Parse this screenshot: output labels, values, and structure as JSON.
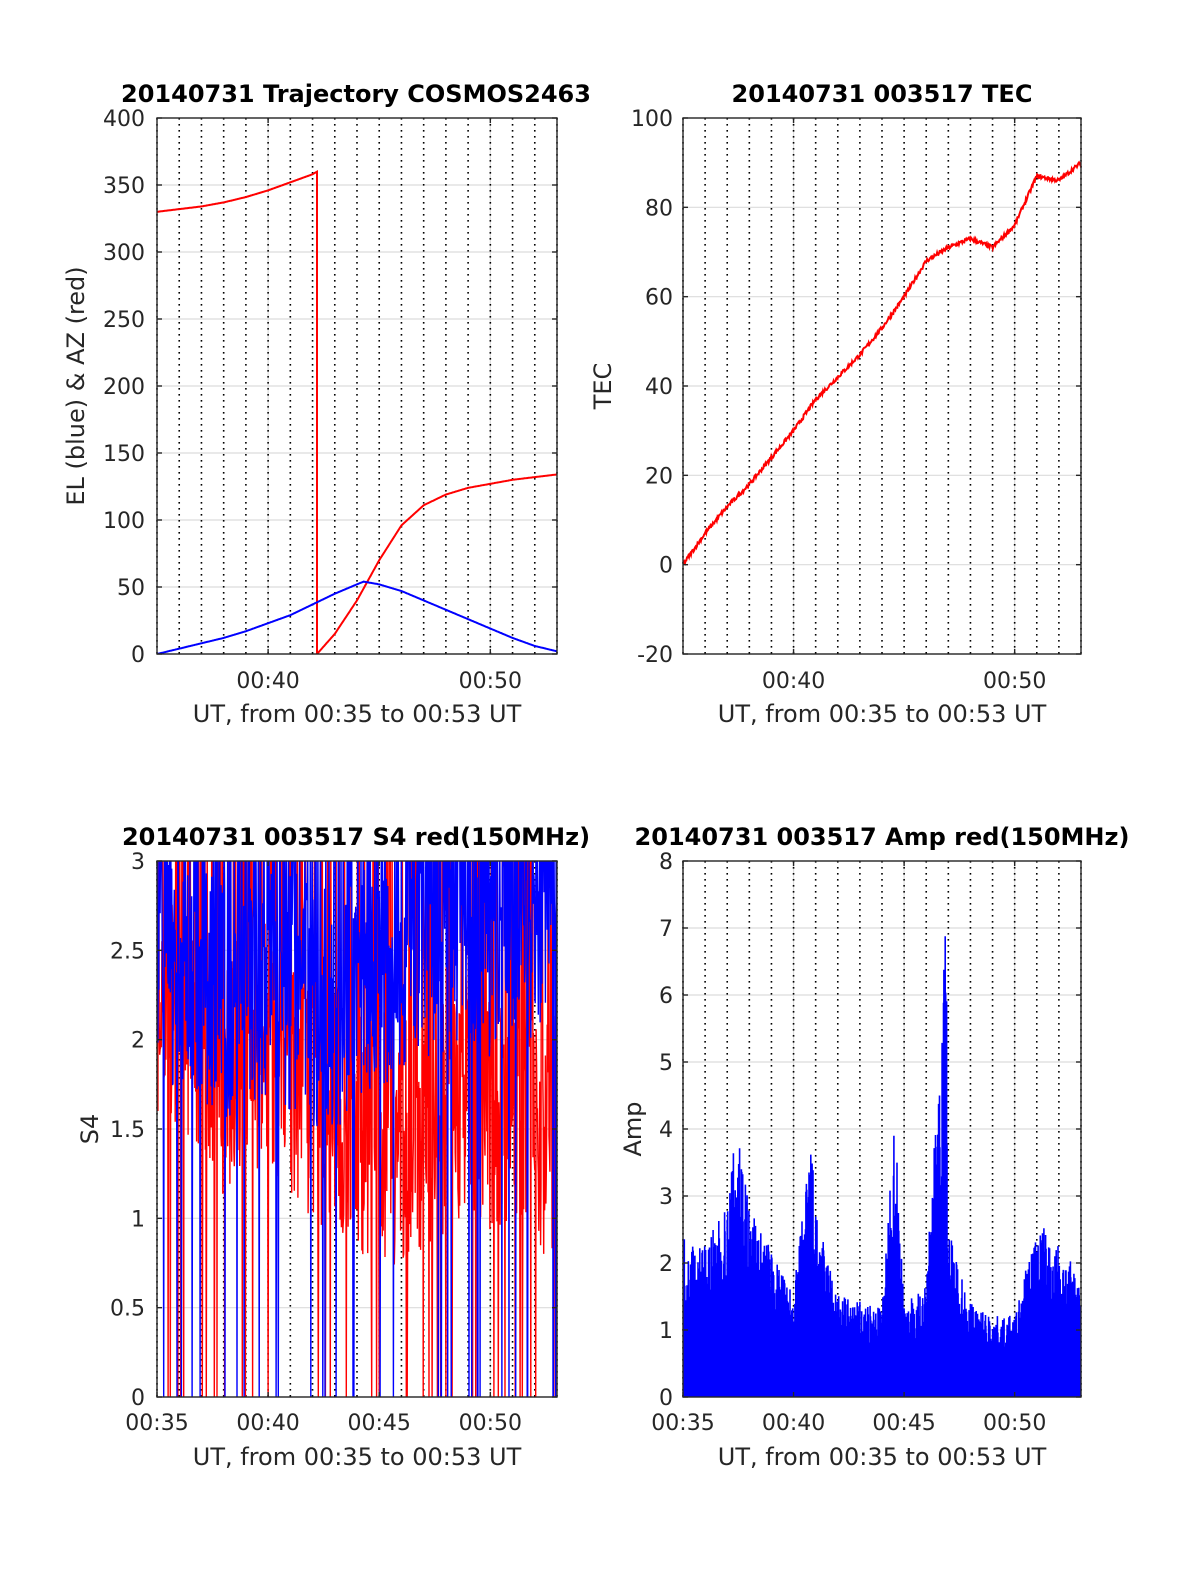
{
  "chart_data": [
    {
      "type": "line",
      "title": "20140731 Trajectory COSMOS2463",
      "xlabel": "UT, from 00:35 to 00:53 UT",
      "ylabel": "EL (blue) & AZ (red)",
      "xlim": [
        "00:35",
        "00:53"
      ],
      "ylim": [
        0,
        400
      ],
      "x_ticks": [
        "00:40",
        "00:50"
      ],
      "y_ticks": [
        "0",
        "50",
        "100",
        "150",
        "200",
        "250",
        "300",
        "350",
        "400"
      ],
      "grid": true,
      "series": [
        {
          "color": "#ff0000",
          "x": [
            "00:35",
            "00:36",
            "00:37",
            "00:38",
            "00:39",
            "00:40",
            "00:41",
            "00:42",
            "00:42.2",
            "00:42.2",
            "00:43",
            "00:44",
            "00:45",
            "00:46",
            "00:47",
            "00:48",
            "00:49",
            "00:50",
            "00:51",
            "00:52",
            "00:53"
          ],
          "values": [
            330,
            332,
            334,
            337,
            341,
            346,
            352,
            358,
            360,
            0,
            15,
            40,
            70,
            96,
            111,
            119,
            124,
            127,
            130,
            132,
            134
          ]
        },
        {
          "color": "#0000ff",
          "x": [
            "00:35",
            "00:36",
            "00:37",
            "00:38",
            "00:39",
            "00:40",
            "00:41",
            "00:42",
            "00:43",
            "00:44",
            "00:44.3",
            "00:45",
            "00:46",
            "00:47",
            "00:48",
            "00:49",
            "00:50",
            "00:51",
            "00:52",
            "00:53"
          ],
          "values": [
            0,
            4,
            8,
            12,
            17,
            23,
            29,
            37,
            45,
            52,
            54,
            52,
            47,
            40,
            33,
            26,
            19,
            12,
            6,
            2
          ]
        }
      ]
    },
    {
      "type": "line",
      "title": "20140731 003517 TEC",
      "xlabel": "UT, from 00:35 to 00:53 UT",
      "ylabel": "TEC",
      "xlim": [
        "00:35",
        "00:53"
      ],
      "ylim": [
        -20,
        100
      ],
      "x_ticks": [
        "00:40",
        "00:50"
      ],
      "y_ticks": [
        "-20",
        "0",
        "20",
        "40",
        "60",
        "80",
        "100"
      ],
      "grid": true,
      "series": [
        {
          "color": "#ff0000",
          "x": [
            "00:35",
            "00:36",
            "00:37",
            "00:38",
            "00:39",
            "00:40",
            "00:41",
            "00:42",
            "00:43",
            "00:44",
            "00:45",
            "00:46",
            "00:47",
            "00:48",
            "00:49",
            "00:50",
            "00:51",
            "00:52",
            "00:53"
          ],
          "values": [
            0,
            7,
            13,
            18,
            24,
            30,
            37,
            42,
            47,
            53,
            60,
            68,
            71,
            73,
            71,
            76,
            87,
            86,
            90
          ]
        }
      ]
    },
    {
      "type": "line",
      "title": "20140731 003517 S4 red(150MHz)",
      "xlabel": "UT, from 00:35 to 00:53 UT",
      "ylabel": "S4",
      "xlim": [
        "00:35",
        "00:53"
      ],
      "ylim": [
        0,
        3
      ],
      "x_ticks": [
        "00:35",
        "00:40",
        "00:45",
        "00:50"
      ],
      "y_ticks": [
        "0",
        "0.5",
        "1",
        "1.5",
        "2",
        "2.5",
        "3"
      ],
      "grid": true,
      "series": [
        {
          "color": "#ff0000",
          "x": [
            "00:35",
            "00:36",
            "00:37",
            "00:38",
            "00:39",
            "00:40",
            "00:41",
            "00:42",
            "00:43",
            "00:44",
            "00:45",
            "00:46",
            "00:47",
            "00:48",
            "00:49",
            "00:50",
            "00:51",
            "00:52",
            "00:53"
          ],
          "values": [
            2.3,
            2.1,
            2.0,
            1.8,
            1.9,
            2.0,
            1.8,
            1.7,
            1.6,
            1.5,
            1.5,
            1.4,
            1.5,
            1.6,
            1.7,
            1.6,
            1.7,
            1.5,
            1.5
          ]
        },
        {
          "color": "#0000ff",
          "x": [
            "00:35",
            "00:36",
            "00:37",
            "00:38",
            "00:39",
            "00:40",
            "00:41",
            "00:42",
            "00:43",
            "00:44",
            "00:45",
            "00:46",
            "00:47",
            "00:48",
            "00:49",
            "00:50",
            "00:51",
            "00:52",
            "00:53"
          ],
          "values": [
            2.5,
            2.4,
            2.3,
            2.2,
            2.3,
            2.4,
            2.3,
            2.2,
            2.2,
            2.3,
            2.4,
            2.5,
            2.6,
            2.6,
            2.7,
            2.6,
            2.7,
            2.7,
            2.8
          ]
        }
      ]
    },
    {
      "type": "line",
      "title": "20140731 003517 Amp red(150MHz)",
      "xlabel": "UT, from 00:35 to 00:53 UT",
      "ylabel": "Amp",
      "xlim": [
        "00:35",
        "00:53"
      ],
      "ylim": [
        0,
        8
      ],
      "x_ticks": [
        "00:35",
        "00:40",
        "00:45",
        "00:50"
      ],
      "y_ticks": [
        "0",
        "1",
        "2",
        "3",
        "4",
        "5",
        "6",
        "7",
        "8"
      ],
      "grid": true,
      "series": [
        {
          "color": "#0000ff",
          "x": [
            "00:35",
            "00:36",
            "00:37",
            "00:37.5",
            "00:38",
            "00:39",
            "00:40",
            "00:40.8",
            "00:41",
            "00:42",
            "00:43",
            "00:44",
            "00:44.6",
            "00:45",
            "00:46",
            "00:46.9",
            "00:47",
            "00:48",
            "00:49",
            "00:50",
            "00:51",
            "00:52",
            "00:53"
          ],
          "values": [
            2.2,
            2.1,
            2.6,
            3.9,
            2.6,
            2.0,
            1.4,
            3.6,
            2.5,
            1.4,
            1.3,
            1.2,
            3.9,
            1.3,
            1.5,
            6.6,
            2.3,
            1.3,
            1.1,
            1.1,
            2.4,
            2.1,
            1.6
          ]
        }
      ]
    }
  ]
}
